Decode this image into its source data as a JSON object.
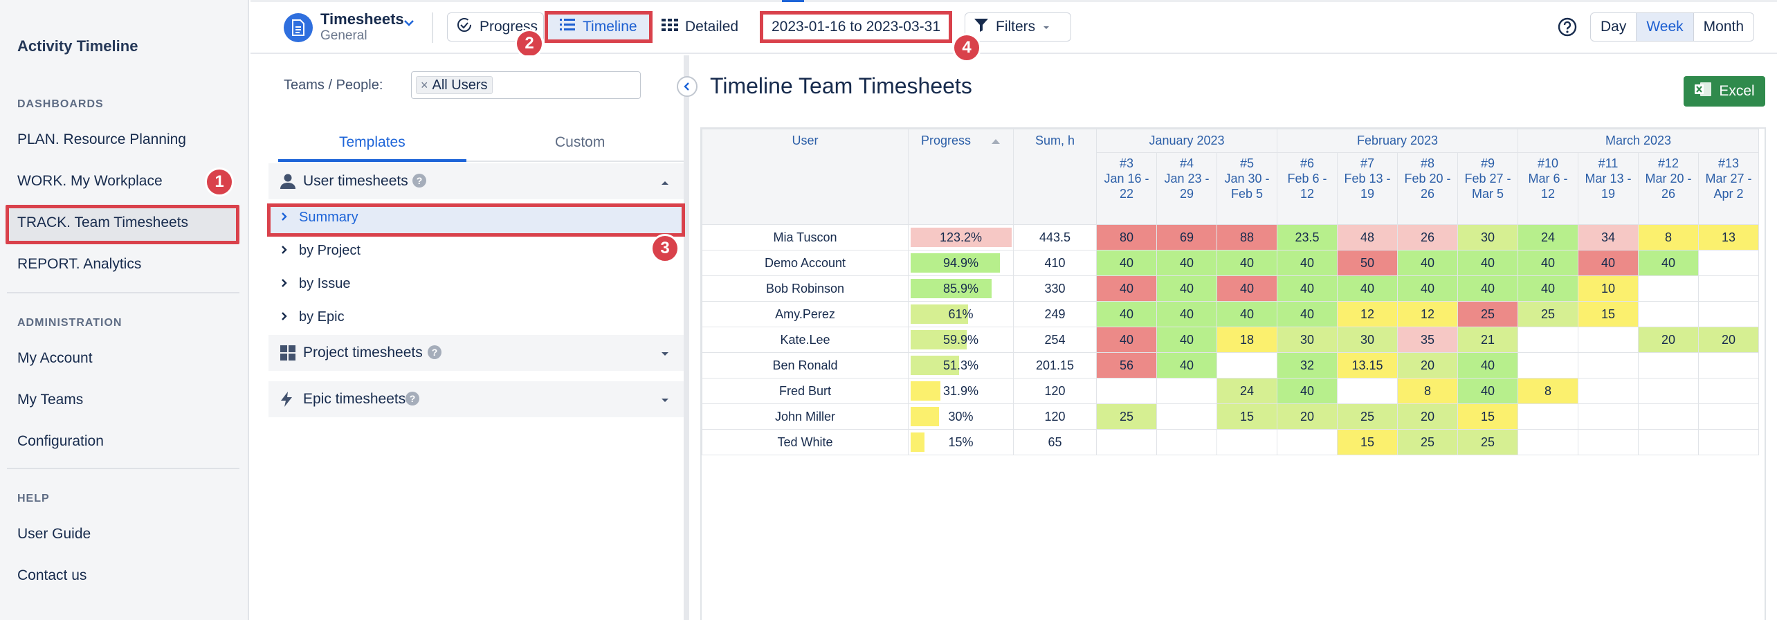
{
  "sidebar": {
    "title": "Activity Timeline",
    "sections": [
      {
        "title": "DASHBOARDS",
        "items": [
          "PLAN. Resource Planning",
          "WORK. My Workplace",
          "TRACK. Team Timesheets",
          "REPORT. Analytics"
        ]
      },
      {
        "title": "ADMINISTRATION",
        "items": [
          "My Account",
          "My Teams",
          "Configuration"
        ]
      },
      {
        "title": "HELP",
        "items": [
          "User Guide",
          "Contact us"
        ]
      }
    ],
    "active_item": "TRACK. Team Timesheets"
  },
  "badges": [
    "1",
    "2",
    "3",
    "4"
  ],
  "toolbar": {
    "app_title": "Timesheets",
    "app_subtitle": "General",
    "progress_label": "Progress",
    "timeline_label": "Timeline",
    "detailed_label": "Detailed",
    "date_range": "2023-01-16 to 2023-03-31",
    "filters_label": "Filters",
    "day_label": "Day",
    "week_label": "Week",
    "month_label": "Month",
    "selected_period": "Week"
  },
  "panel": {
    "teams_label": "Teams / People:",
    "teams_chip": "All Users",
    "tabs": [
      "Templates",
      "Custom"
    ],
    "active_tab": "Templates",
    "user_group": "User timesheets",
    "user_items": [
      "Summary",
      "by Project",
      "by Issue",
      "by Epic"
    ],
    "selected_item": "Summary",
    "project_group": "Project timesheets",
    "epic_group": "Epic timesheets"
  },
  "main": {
    "title": "Timeline Team Timesheets",
    "excel_label": "Excel",
    "headers": {
      "user": "User",
      "progress": "Progress",
      "sum": "Sum, h"
    },
    "months": [
      {
        "label": "January 2023",
        "span": 3
      },
      {
        "label": "February 2023",
        "span": 4
      },
      {
        "label": "March 2023",
        "span": 4
      }
    ],
    "weeks": [
      [
        "#3",
        "Jan 16 -",
        "22"
      ],
      [
        "#4",
        "Jan 23 -",
        "29"
      ],
      [
        "#5",
        "Jan 30 -",
        "Feb 5"
      ],
      [
        "#6",
        "Feb 6 -",
        "12"
      ],
      [
        "#7",
        "Feb 13 -",
        "19"
      ],
      [
        "#8",
        "Feb 20 -",
        "26"
      ],
      [
        "#9",
        "Feb 27 -",
        "Mar 5"
      ],
      [
        "#10",
        "Mar 6 -",
        "12"
      ],
      [
        "#11",
        "Mar 13 -",
        "19"
      ],
      [
        "#12",
        "Mar 20 -",
        "26"
      ],
      [
        "#13",
        "Mar 27 -",
        "Apr 2"
      ]
    ],
    "rows": [
      {
        "user": "Mia Tuscon",
        "progress": "123.2%",
        "progress_value": 123.2,
        "sum": "443.5",
        "cells": [
          [
            "80",
            "red"
          ],
          [
            "69",
            "red"
          ],
          [
            "88",
            "red"
          ],
          [
            "23.5",
            "green"
          ],
          [
            "48",
            "pink"
          ],
          [
            "26",
            "pink"
          ],
          [
            "30",
            "lime"
          ],
          [
            "24",
            "green"
          ],
          [
            "34",
            "pink"
          ],
          [
            "8",
            "yellow"
          ],
          [
            "13",
            "yellow"
          ]
        ]
      },
      {
        "user": "Demo Account",
        "progress": "94.9%",
        "progress_value": 94.9,
        "sum": "410",
        "cells": [
          [
            "40",
            "green"
          ],
          [
            "40",
            "green"
          ],
          [
            "40",
            "green"
          ],
          [
            "40",
            "green"
          ],
          [
            "50",
            "red"
          ],
          [
            "40",
            "green"
          ],
          [
            "40",
            "green"
          ],
          [
            "40",
            "green"
          ],
          [
            "40",
            "red"
          ],
          [
            "40",
            "green"
          ],
          [
            "",
            ""
          ]
        ]
      },
      {
        "user": "Bob Robinson",
        "progress": "85.9%",
        "progress_value": 85.9,
        "sum": "330",
        "cells": [
          [
            "40",
            "red"
          ],
          [
            "40",
            "green"
          ],
          [
            "40",
            "red"
          ],
          [
            "40",
            "green"
          ],
          [
            "40",
            "green"
          ],
          [
            "40",
            "green"
          ],
          [
            "40",
            "green"
          ],
          [
            "40",
            "green"
          ],
          [
            "10",
            "yellow"
          ],
          [
            "",
            ""
          ],
          [
            "",
            ""
          ]
        ]
      },
      {
        "user": "Amy.Perez",
        "progress": "61%",
        "progress_value": 61,
        "sum": "249",
        "cells": [
          [
            "40",
            "green"
          ],
          [
            "40",
            "green"
          ],
          [
            "40",
            "green"
          ],
          [
            "40",
            "green"
          ],
          [
            "12",
            "yellow"
          ],
          [
            "12",
            "yellow"
          ],
          [
            "25",
            "red"
          ],
          [
            "25",
            "lime"
          ],
          [
            "15",
            "yellow"
          ],
          [
            "",
            ""
          ],
          [
            "",
            ""
          ]
        ]
      },
      {
        "user": "Kate.Lee",
        "progress": "59.9%",
        "progress_value": 59.9,
        "sum": "254",
        "cells": [
          [
            "40",
            "red"
          ],
          [
            "40",
            "green"
          ],
          [
            "18",
            "yellow"
          ],
          [
            "30",
            "lime"
          ],
          [
            "30",
            "lime"
          ],
          [
            "35",
            "pink"
          ],
          [
            "21",
            "lime"
          ],
          [
            "",
            ""
          ],
          [
            "",
            ""
          ],
          [
            "20",
            "lime"
          ],
          [
            "20",
            "lime"
          ]
        ]
      },
      {
        "user": "Ben Ronald",
        "progress": "51.3%",
        "progress_value": 51.3,
        "sum": "201.15",
        "cells": [
          [
            "56",
            "red"
          ],
          [
            "40",
            "green"
          ],
          [
            "",
            ""
          ],
          [
            "32",
            "green"
          ],
          [
            "13.15",
            "yellow"
          ],
          [
            "20",
            "lime"
          ],
          [
            "40",
            "green"
          ],
          [
            "",
            ""
          ],
          [
            "",
            ""
          ],
          [
            "",
            ""
          ],
          [
            "",
            ""
          ]
        ]
      },
      {
        "user": "Fred Burt",
        "progress": "31.9%",
        "progress_value": 31.9,
        "sum": "120",
        "cells": [
          [
            "",
            ""
          ],
          [
            "",
            ""
          ],
          [
            "24",
            "lime"
          ],
          [
            "40",
            "green"
          ],
          [
            "",
            ""
          ],
          [
            "8",
            "yellow"
          ],
          [
            "40",
            "green"
          ],
          [
            "8",
            "yellow"
          ],
          [
            "",
            ""
          ],
          [
            "",
            ""
          ],
          [
            "",
            ""
          ]
        ]
      },
      {
        "user": "John Miller",
        "progress": "30%",
        "progress_value": 30,
        "sum": "120",
        "cells": [
          [
            "25",
            "lime"
          ],
          [
            "",
            ""
          ],
          [
            "15",
            "lime"
          ],
          [
            "20",
            "lime"
          ],
          [
            "25",
            "lime"
          ],
          [
            "20",
            "lime"
          ],
          [
            "15",
            "yellow"
          ],
          [
            "",
            ""
          ],
          [
            "",
            ""
          ],
          [
            "",
            ""
          ],
          [
            "",
            ""
          ]
        ]
      },
      {
        "user": "Ted White",
        "progress": "15%",
        "progress_value": 15,
        "sum": "65",
        "cells": [
          [
            "",
            ""
          ],
          [
            "",
            ""
          ],
          [
            "",
            ""
          ],
          [
            "",
            ""
          ],
          [
            "15",
            "yellow"
          ],
          [
            "25",
            "lime"
          ],
          [
            "25",
            "lime"
          ],
          [
            "",
            ""
          ],
          [
            "",
            ""
          ],
          [
            "",
            ""
          ],
          [
            "",
            ""
          ]
        ]
      }
    ]
  },
  "colors": {
    "accent": "#1d64d8",
    "highlight": "#d9414b",
    "red": "#ec8a88",
    "pink": "#f6c8c5",
    "green": "#b7ef8c",
    "lime": "#d6ef92",
    "yellow": "#fbf06e",
    "excel": "#2f8a4c"
  },
  "icons": [
    "document-icon",
    "chevron-down-icon",
    "progress-icon",
    "list-icon",
    "grid-icon",
    "filter-icon",
    "help-icon",
    "user-icon",
    "dashboard-icon",
    "bolt-icon",
    "question-icon",
    "chevron-right-icon",
    "chevron-up-icon",
    "chevron-left-icon",
    "excel-icon",
    "sort-asc-icon"
  ]
}
